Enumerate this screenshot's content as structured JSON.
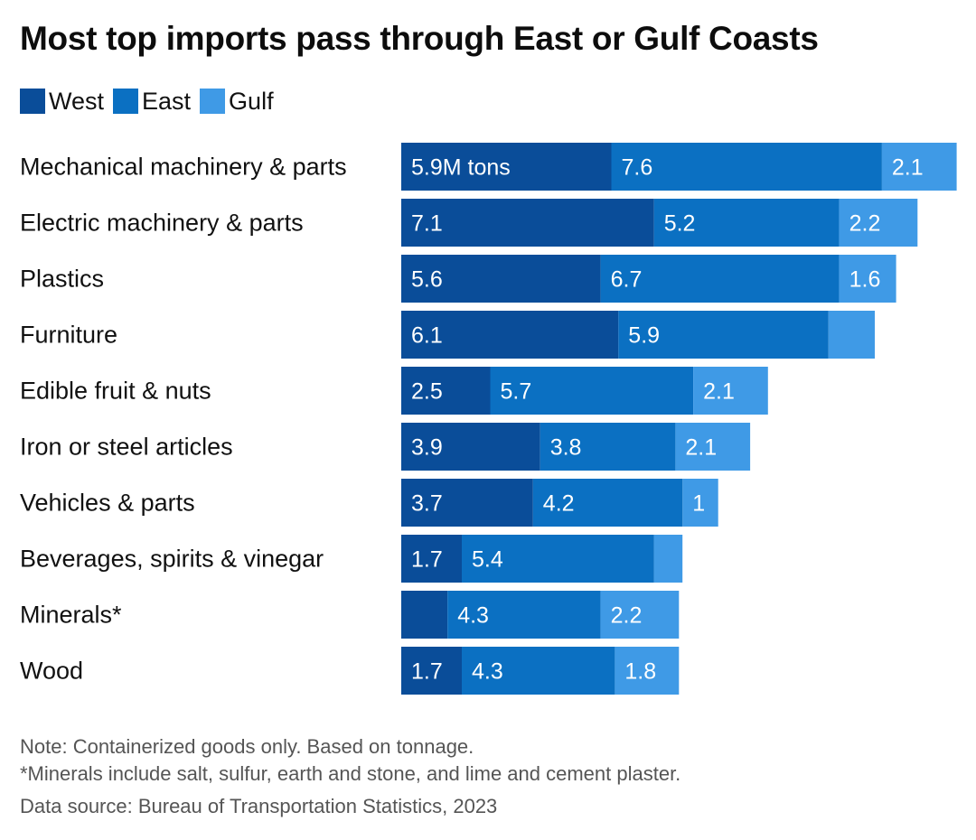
{
  "title": "Most top imports pass through East or Gulf Coasts",
  "legend": [
    {
      "label": "West",
      "color": "#0a4d99"
    },
    {
      "label": "East",
      "color": "#0b70c2"
    },
    {
      "label": "Gulf",
      "color": "#3f9ae6"
    }
  ],
  "chart_data": {
    "type": "bar",
    "orientation": "horizontal",
    "stacked": true,
    "unit_label": "M tons",
    "categories": [
      "Mechanical machinery & parts",
      "Electric machinery & parts",
      "Plastics",
      "Furniture",
      "Edible fruit & nuts",
      "Iron or steel articles",
      "Vehicles & parts",
      "Beverages, spirits & vinegar",
      "Minerals*",
      "Wood"
    ],
    "series": [
      {
        "name": "West",
        "color": "#0a4d99",
        "values": [
          5.9,
          7.1,
          5.6,
          6.1,
          2.5,
          3.9,
          3.7,
          1.7,
          1.3,
          1.7
        ],
        "labels": [
          "5.9M tons",
          "7.1",
          "5.6",
          "6.1",
          "2.5",
          "3.9",
          "3.7",
          "1.7",
          "",
          "1.7"
        ]
      },
      {
        "name": "East",
        "color": "#0b70c2",
        "values": [
          7.6,
          5.2,
          6.7,
          5.9,
          5.7,
          3.8,
          4.2,
          5.4,
          4.3,
          4.3
        ],
        "labels": [
          "7.6",
          "5.2",
          "6.7",
          "5.9",
          "5.7",
          "3.8",
          "4.2",
          "5.4",
          "4.3",
          "4.3"
        ]
      },
      {
        "name": "Gulf",
        "color": "#3f9ae6",
        "values": [
          2.1,
          2.2,
          1.6,
          1.3,
          2.1,
          2.1,
          1.0,
          0.8,
          2.2,
          1.8
        ],
        "labels": [
          "2.1",
          "2.2",
          "1.6",
          "",
          "2.1",
          "2.1",
          "1",
          "",
          "2.2",
          "1.8"
        ]
      }
    ]
  },
  "notes": [
    "Note: Containerized goods only. Based on tonnage.",
    "*Minerals include salt, sulfur, earth and stone, and lime and cement plaster."
  ],
  "source": "Data source: Bureau of Transportation Statistics, 2023"
}
